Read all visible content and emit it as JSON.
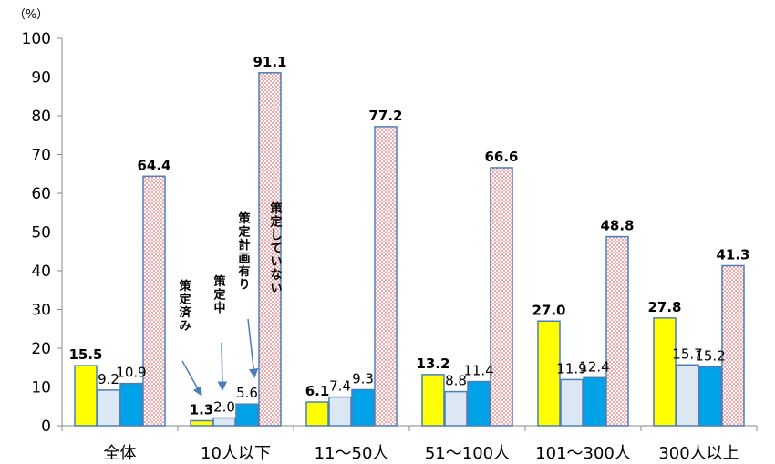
{
  "chart_data": {
    "type": "bar",
    "unit_label": "（%）",
    "ylim": [
      0,
      100
    ],
    "yticks": [
      0,
      10,
      20,
      30,
      40,
      50,
      60,
      70,
      80,
      90,
      100
    ],
    "categories": [
      "全体",
      "10人以下",
      "11〜50人",
      "51〜100人",
      "101〜300人",
      "300人以上"
    ],
    "series": [
      {
        "name": "策定済み",
        "color": "#ffff00",
        "bold_labels": true,
        "values": [
          15.5,
          1.3,
          6.1,
          13.2,
          27.0,
          27.8
        ]
      },
      {
        "name": "策定中",
        "color": "#dce9f4",
        "bold_labels": false,
        "values": [
          9.2,
          2.0,
          7.4,
          8.8,
          11.9,
          15.7
        ]
      },
      {
        "name": "策定計画有り",
        "color": "#00a3e8",
        "bold_labels": false,
        "values": [
          10.9,
          5.6,
          9.3,
          11.4,
          12.4,
          15.2
        ]
      },
      {
        "name": "策定していない",
        "color": "#ff9999",
        "pattern": "dots",
        "bold_labels": true,
        "values": [
          64.4,
          91.1,
          77.2,
          66.6,
          48.8,
          41.3
        ]
      }
    ],
    "series_labels_location": "inside the 10人以下 group, with arrows to bars",
    "grid": false,
    "legend": "none"
  }
}
